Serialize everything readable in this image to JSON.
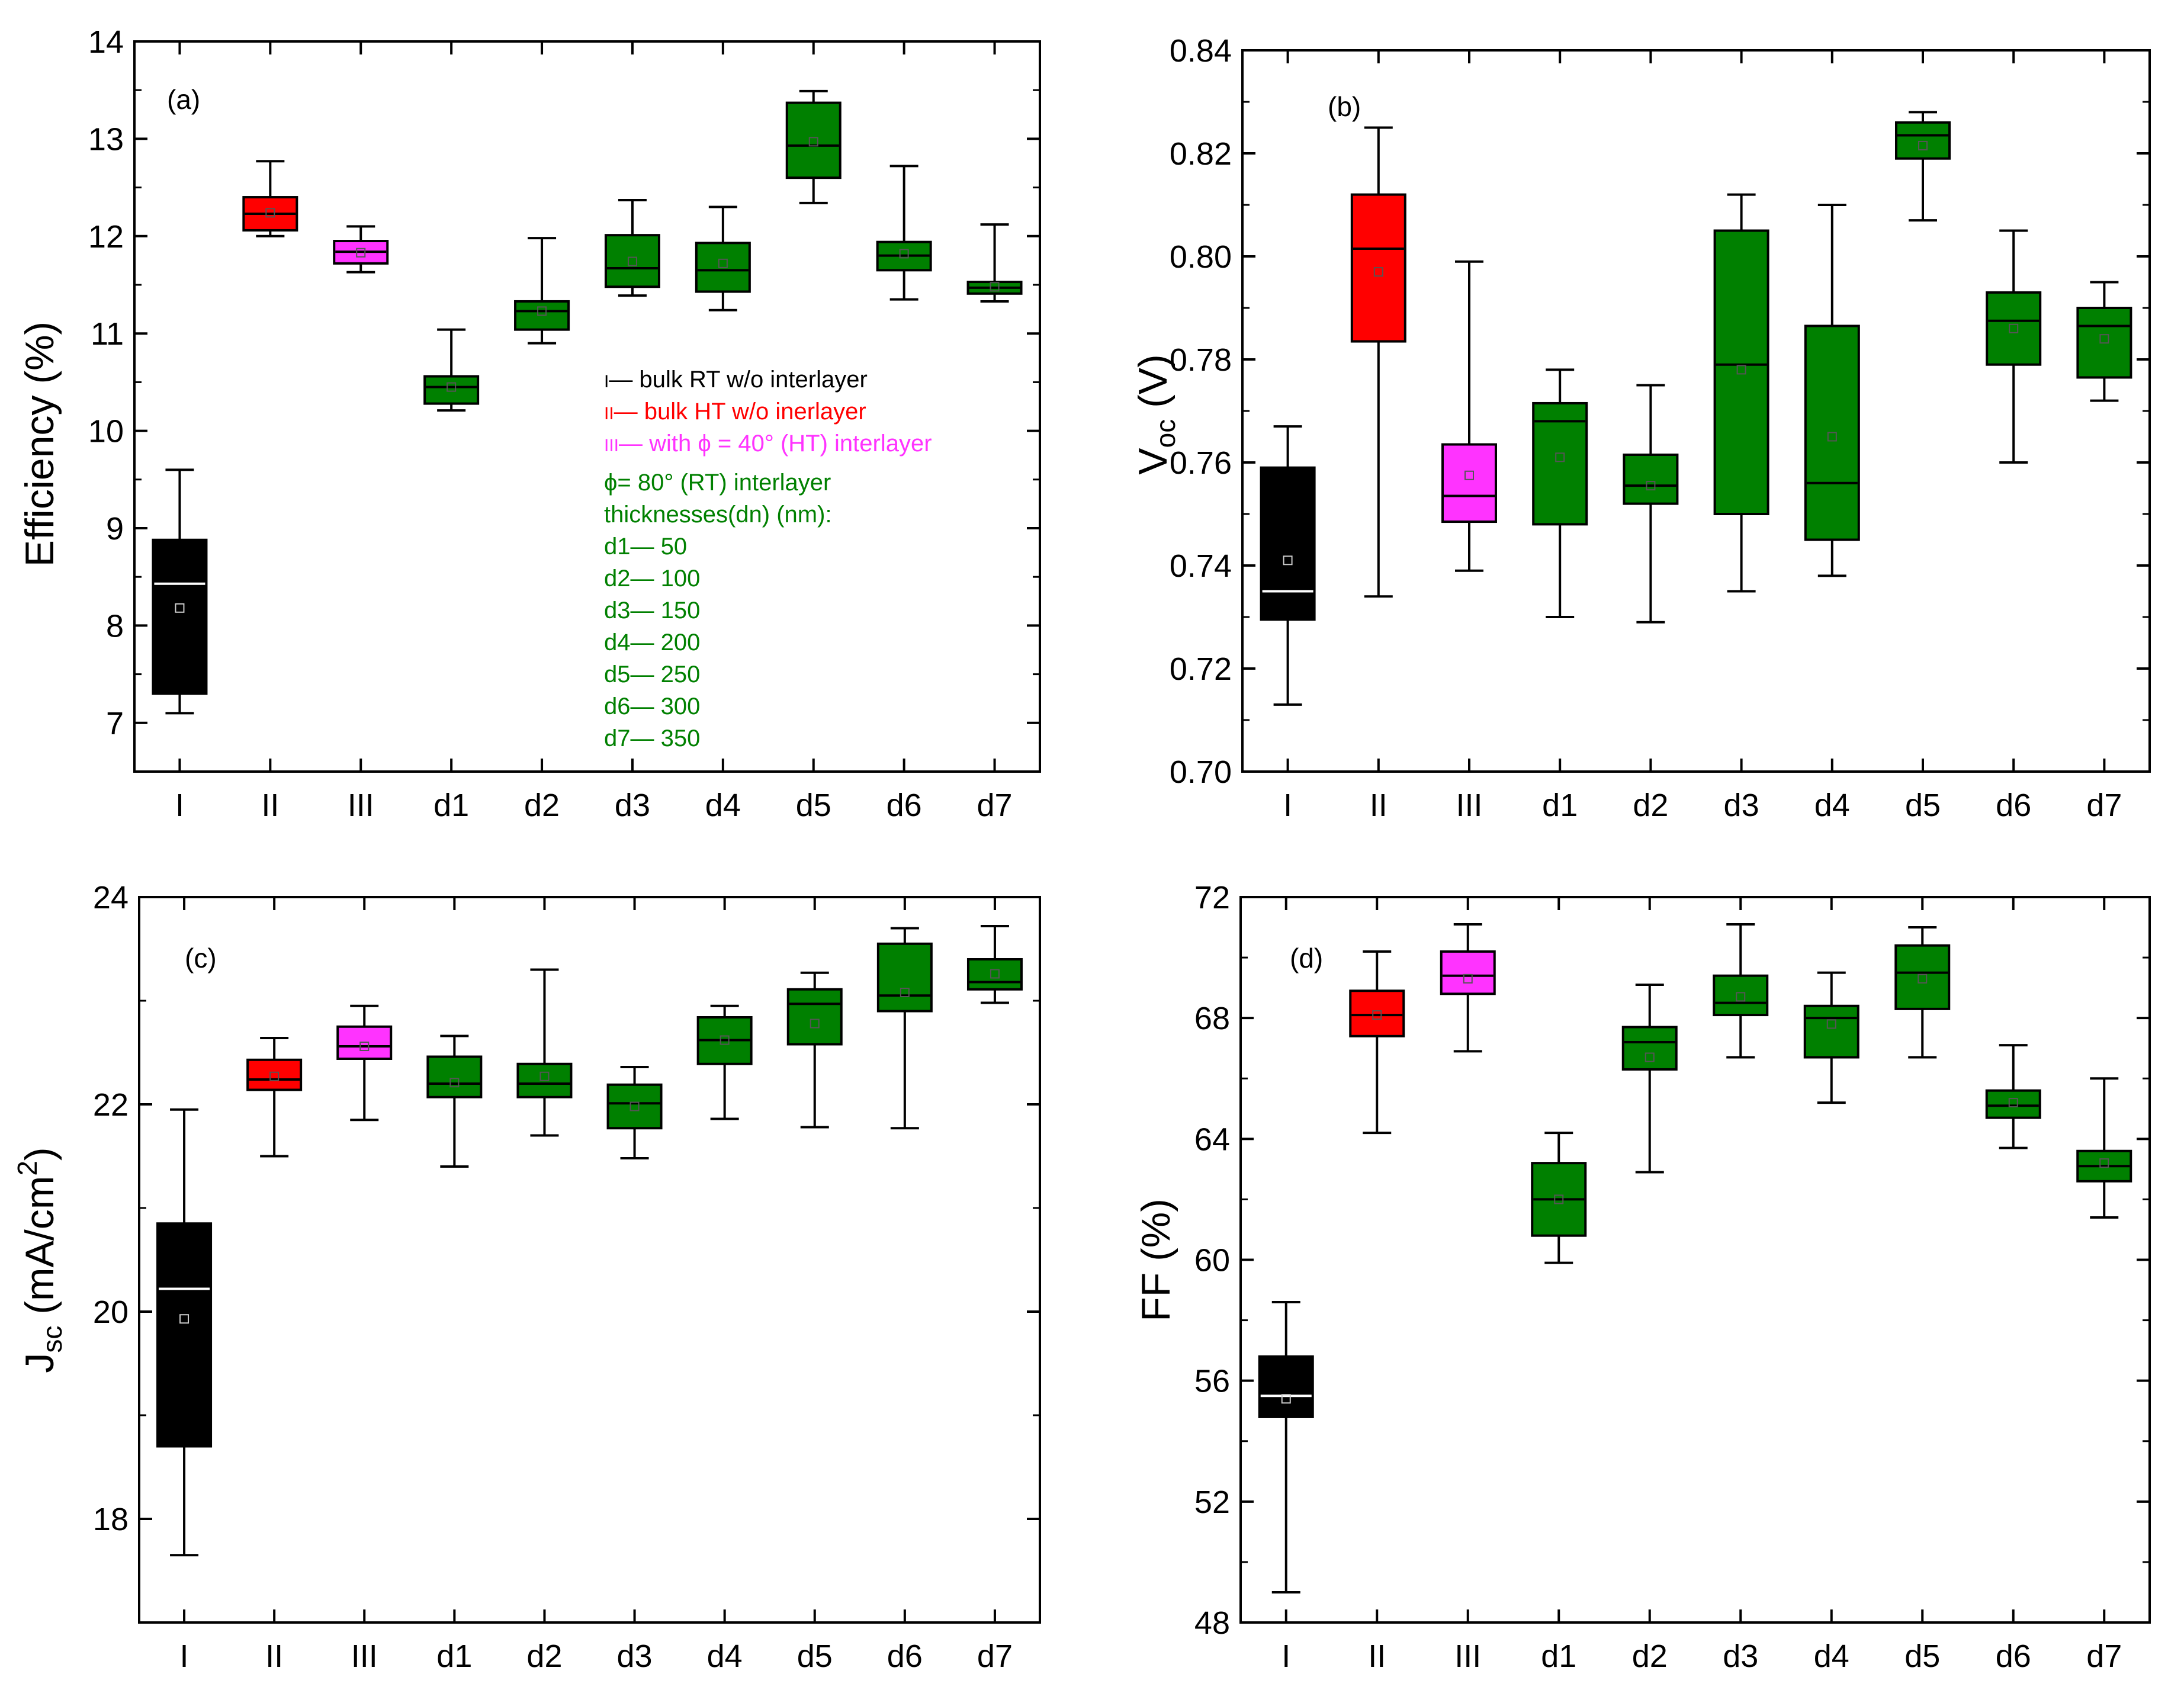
{
  "chart_data": [
    {
      "id": "a",
      "type": "box",
      "panel_label": "(a)",
      "ylabel": "Efficiency (%)",
      "ylim": [
        6.5,
        14
      ],
      "yticks": [
        7,
        8,
        9,
        10,
        11,
        12,
        13,
        14
      ],
      "categories": [
        "I",
        "II",
        "III",
        "d1",
        "d2",
        "d3",
        "d4",
        "d5",
        "d6",
        "d7"
      ],
      "box_colors": [
        "#000000",
        "#ff0000",
        "#ff33ff",
        "#008000",
        "#008000",
        "#008000",
        "#008000",
        "#008000",
        "#008000",
        "#008000"
      ],
      "boxes": [
        {
          "min": 7.1,
          "q1": 7.3,
          "median": 8.43,
          "q3": 8.88,
          "max": 9.6,
          "mean": 8.18
        },
        {
          "min": 12.0,
          "q1": 12.06,
          "median": 12.23,
          "q3": 12.4,
          "max": 12.77,
          "mean": 12.24
        },
        {
          "min": 11.63,
          "q1": 11.72,
          "median": 11.84,
          "q3": 11.95,
          "max": 12.1,
          "mean": 11.83
        },
        {
          "min": 10.21,
          "q1": 10.28,
          "median": 10.45,
          "q3": 10.56,
          "max": 11.04,
          "mean": 10.45
        },
        {
          "min": 10.9,
          "q1": 11.04,
          "median": 11.23,
          "q3": 11.33,
          "max": 11.98,
          "mean": 11.23
        },
        {
          "min": 11.39,
          "q1": 11.48,
          "median": 11.67,
          "q3": 12.01,
          "max": 12.37,
          "mean": 11.74
        },
        {
          "min": 11.24,
          "q1": 11.43,
          "median": 11.65,
          "q3": 11.93,
          "max": 12.3,
          "mean": 11.72
        },
        {
          "min": 12.34,
          "q1": 12.6,
          "median": 12.93,
          "q3": 13.37,
          "max": 13.49,
          "mean": 12.97
        },
        {
          "min": 11.35,
          "q1": 11.65,
          "median": 11.8,
          "q3": 11.94,
          "max": 12.72,
          "mean": 11.82
        },
        {
          "min": 11.33,
          "q1": 11.41,
          "median": 11.47,
          "q3": 11.53,
          "max": 12.12,
          "mean": 11.48
        }
      ]
    },
    {
      "id": "b",
      "type": "box",
      "panel_label": "(b)",
      "ylabel_main": "V",
      "ylabel_sub": "oc",
      "ylabel_tail": " (V)",
      "ylim": [
        0.7,
        0.84
      ],
      "yticks": [
        0.7,
        0.72,
        0.74,
        0.76,
        0.78,
        0.8,
        0.82,
        0.84
      ],
      "yticks_text": [
        "0.70",
        "0.72",
        "0.74",
        "0.76",
        "0.78",
        "0.80",
        "0.82",
        "0.84"
      ],
      "categories": [
        "I",
        "II",
        "III",
        "d1",
        "d2",
        "d3",
        "d4",
        "d5",
        "d6",
        "d7"
      ],
      "box_colors": [
        "#000000",
        "#ff0000",
        "#ff33ff",
        "#008000",
        "#008000",
        "#008000",
        "#008000",
        "#008000",
        "#008000",
        "#008000"
      ],
      "boxes": [
        {
          "min": 0.713,
          "q1": 0.7295,
          "median": 0.735,
          "q3": 0.759,
          "max": 0.767,
          "mean": 0.741
        },
        {
          "min": 0.734,
          "q1": 0.7835,
          "median": 0.8015,
          "q3": 0.812,
          "max": 0.825,
          "mean": 0.797
        },
        {
          "min": 0.739,
          "q1": 0.7485,
          "median": 0.7535,
          "q3": 0.7635,
          "max": 0.799,
          "mean": 0.7575
        },
        {
          "min": 0.73,
          "q1": 0.748,
          "median": 0.768,
          "q3": 0.7715,
          "max": 0.778,
          "mean": 0.761
        },
        {
          "min": 0.729,
          "q1": 0.752,
          "median": 0.7555,
          "q3": 0.7615,
          "max": 0.775,
          "mean": 0.7555
        },
        {
          "min": 0.735,
          "q1": 0.75,
          "median": 0.779,
          "q3": 0.805,
          "max": 0.812,
          "mean": 0.778
        },
        {
          "min": 0.738,
          "q1": 0.745,
          "median": 0.756,
          "q3": 0.7865,
          "max": 0.81,
          "mean": 0.765
        },
        {
          "min": 0.807,
          "q1": 0.819,
          "median": 0.8235,
          "q3": 0.826,
          "max": 0.828,
          "mean": 0.8215
        },
        {
          "min": 0.76,
          "q1": 0.779,
          "median": 0.7875,
          "q3": 0.793,
          "max": 0.805,
          "mean": 0.786
        },
        {
          "min": 0.772,
          "q1": 0.7765,
          "median": 0.7865,
          "q3": 0.79,
          "max": 0.795,
          "mean": 0.784
        }
      ]
    },
    {
      "id": "c",
      "type": "box",
      "panel_label": "(c)",
      "ylabel_main": "J",
      "ylabel_sub": "sc",
      "ylabel_tail": " (mA/cm",
      "ylabel_sup": "2",
      "ylabel_end": ")",
      "ylim": [
        17,
        24
      ],
      "yticks": [
        18,
        20,
        22,
        24
      ],
      "categories": [
        "I",
        "II",
        "III",
        "d1",
        "d2",
        "d3",
        "d4",
        "d5",
        "d6",
        "d7"
      ],
      "box_colors": [
        "#000000",
        "#ff0000",
        "#ff33ff",
        "#008000",
        "#008000",
        "#008000",
        "#008000",
        "#008000",
        "#008000",
        "#008000"
      ],
      "boxes": [
        {
          "min": 17.65,
          "q1": 18.7,
          "median": 20.22,
          "q3": 20.85,
          "max": 21.95,
          "mean": 19.93
        },
        {
          "min": 21.5,
          "q1": 22.14,
          "median": 22.24,
          "q3": 22.43,
          "max": 22.64,
          "mean": 22.27
        },
        {
          "min": 21.85,
          "q1": 22.44,
          "median": 22.56,
          "q3": 22.75,
          "max": 22.95,
          "mean": 22.56
        },
        {
          "min": 21.4,
          "q1": 22.07,
          "median": 22.2,
          "q3": 22.46,
          "max": 22.66,
          "mean": 22.21
        },
        {
          "min": 21.7,
          "q1": 22.07,
          "median": 22.2,
          "q3": 22.39,
          "max": 23.3,
          "mean": 22.27
        },
        {
          "min": 21.48,
          "q1": 21.77,
          "median": 22.01,
          "q3": 22.19,
          "max": 22.36,
          "mean": 21.98
        },
        {
          "min": 21.86,
          "q1": 22.39,
          "median": 22.62,
          "q3": 22.84,
          "max": 22.95,
          "mean": 22.62
        },
        {
          "min": 21.78,
          "q1": 22.58,
          "median": 22.97,
          "q3": 23.11,
          "max": 23.27,
          "mean": 22.78
        },
        {
          "min": 21.77,
          "q1": 22.9,
          "median": 23.05,
          "q3": 23.55,
          "max": 23.7,
          "mean": 23.08
        },
        {
          "min": 22.98,
          "q1": 23.11,
          "median": 23.18,
          "q3": 23.4,
          "max": 23.72,
          "mean": 23.26
        }
      ]
    },
    {
      "id": "d",
      "type": "box",
      "panel_label": "(d)",
      "ylabel": "FF (%)",
      "ylim": [
        48,
        72
      ],
      "yticks": [
        48,
        52,
        56,
        60,
        64,
        68,
        72
      ],
      "categories": [
        "I",
        "II",
        "III",
        "d1",
        "d2",
        "d3",
        "d4",
        "d5",
        "d6",
        "d7"
      ],
      "box_colors": [
        "#000000",
        "#ff0000",
        "#ff33ff",
        "#008000",
        "#008000",
        "#008000",
        "#008000",
        "#008000",
        "#008000",
        "#008000"
      ],
      "boxes": [
        {
          "min": 49.0,
          "q1": 54.8,
          "median": 55.5,
          "q3": 56.8,
          "max": 58.6,
          "mean": 55.4
        },
        {
          "min": 64.2,
          "q1": 67.4,
          "median": 68.1,
          "q3": 68.9,
          "max": 70.2,
          "mean": 68.1
        },
        {
          "min": 66.9,
          "q1": 68.8,
          "median": 69.4,
          "q3": 70.2,
          "max": 71.1,
          "mean": 69.3
        },
        {
          "min": 59.9,
          "q1": 60.8,
          "median": 62.0,
          "q3": 63.2,
          "max": 64.2,
          "mean": 62.0
        },
        {
          "min": 62.9,
          "q1": 66.3,
          "median": 67.2,
          "q3": 67.7,
          "max": 69.1,
          "mean": 66.7
        },
        {
          "min": 66.7,
          "q1": 68.1,
          "median": 68.5,
          "q3": 69.4,
          "max": 71.1,
          "mean": 68.7
        },
        {
          "min": 65.2,
          "q1": 66.7,
          "median": 68.0,
          "q3": 68.4,
          "max": 69.5,
          "mean": 67.8
        },
        {
          "min": 66.7,
          "q1": 68.3,
          "median": 69.5,
          "q3": 70.4,
          "max": 71.0,
          "mean": 69.3
        },
        {
          "min": 63.7,
          "q1": 64.7,
          "median": 65.1,
          "q3": 65.6,
          "max": 67.1,
          "mean": 65.2
        },
        {
          "min": 61.4,
          "q1": 62.6,
          "median": 63.1,
          "q3": 63.6,
          "max": 66.0,
          "mean": 63.2
        }
      ]
    }
  ],
  "legend": {
    "entries": [
      {
        "symbol": "I",
        "text": "— bulk RT w/o interlayer",
        "color": "#000000"
      },
      {
        "symbol": "II",
        "text": "— bulk HT w/o inerlayer",
        "color": "#ff0000"
      },
      {
        "symbol": "III",
        "text": "— with ϕ = 40° (HT) interlayer",
        "color": "#ff33ff"
      }
    ],
    "green_lines": [
      "ϕ= 80° (RT) interlayer",
      "thicknesses(dn) (nm):",
      "d1— 50",
      "d2— 100",
      "d3— 150",
      "d4— 200",
      "d5— 250",
      "d6— 300",
      "d7— 350"
    ],
    "green_color": "#008000"
  }
}
